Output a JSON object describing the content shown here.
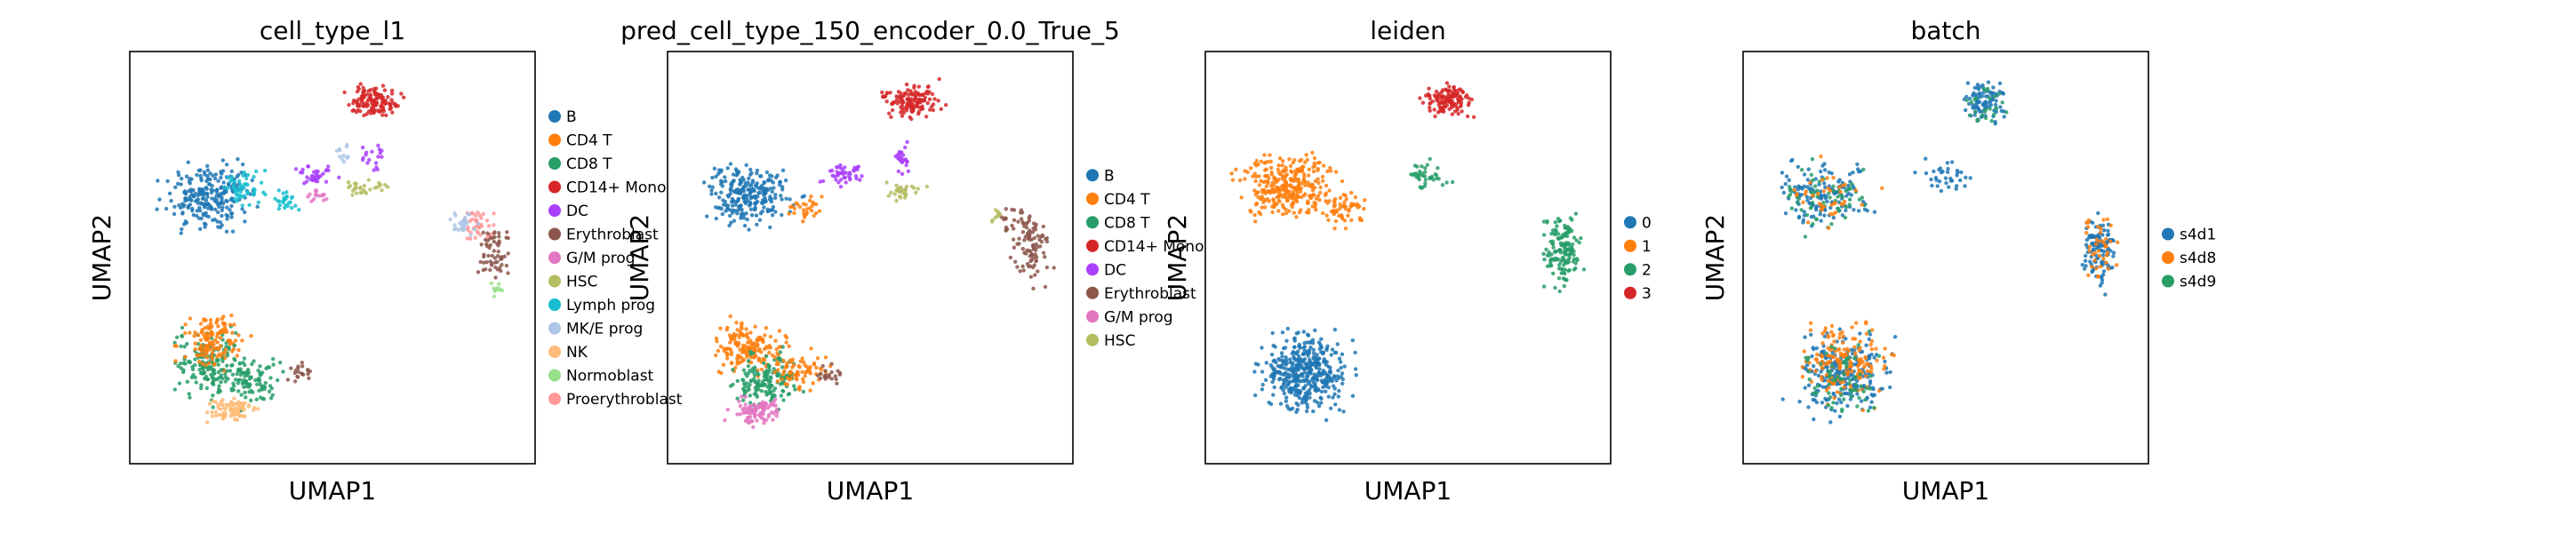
{
  "chart_data": [
    {
      "type": "scatter",
      "title": "cell_type_l1",
      "xlabel": "UMAP1",
      "ylabel": "UMAP2",
      "grid": false,
      "legend_placement": "right-outside",
      "series": [
        {
          "name": "B",
          "color": "#1f77b4"
        },
        {
          "name": "CD4 T",
          "color": "#ff7f0e"
        },
        {
          "name": "CD8 T",
          "color": "#279e68"
        },
        {
          "name": "CD14+ Mono",
          "color": "#d62728"
        },
        {
          "name": "DC",
          "color": "#aa40fc"
        },
        {
          "name": "Erythroblast",
          "color": "#8c564b"
        },
        {
          "name": "G/M prog",
          "color": "#e377c2"
        },
        {
          "name": "HSC",
          "color": "#b5bd61"
        },
        {
          "name": "Lymph prog",
          "color": "#17becf"
        },
        {
          "name": "MK/E prog",
          "color": "#aec7e8"
        },
        {
          "name": "NK",
          "color": "#ffbb78"
        },
        {
          "name": "Normoblast",
          "color": "#98df8a"
        },
        {
          "name": "Proerythroblast",
          "color": "#ff9896"
        }
      ]
    },
    {
      "type": "scatter",
      "title": "pred_cell_type_150_encoder_0.0_True_5",
      "xlabel": "UMAP1",
      "ylabel": "UMAP2",
      "grid": false,
      "legend_placement": "right-outside",
      "series": [
        {
          "name": "B",
          "color": "#1f77b4"
        },
        {
          "name": "CD4 T",
          "color": "#ff7f0e"
        },
        {
          "name": "CD8 T",
          "color": "#279e68"
        },
        {
          "name": "CD14+ Mono",
          "color": "#d62728"
        },
        {
          "name": "DC",
          "color": "#aa40fc"
        },
        {
          "name": "Erythroblast",
          "color": "#8c564b"
        },
        {
          "name": "G/M prog",
          "color": "#e377c2"
        },
        {
          "name": "HSC",
          "color": "#b5bd61"
        }
      ]
    },
    {
      "type": "scatter",
      "title": "leiden",
      "xlabel": "UMAP1",
      "ylabel": "UMAP2",
      "grid": false,
      "legend_placement": "right-outside",
      "series": [
        {
          "name": "0",
          "color": "#1f77b4"
        },
        {
          "name": "1",
          "color": "#ff7f0e"
        },
        {
          "name": "2",
          "color": "#279e68"
        },
        {
          "name": "3",
          "color": "#d62728"
        }
      ]
    },
    {
      "type": "scatter",
      "title": "batch",
      "xlabel": "UMAP1",
      "ylabel": "UMAP2",
      "grid": false,
      "legend_placement": "right-outside",
      "series": [
        {
          "name": "s4d1",
          "color": "#1f77b4"
        },
        {
          "name": "s4d8",
          "color": "#ff7f0e"
        },
        {
          "name": "s4d9",
          "color": "#279e68"
        }
      ]
    }
  ]
}
